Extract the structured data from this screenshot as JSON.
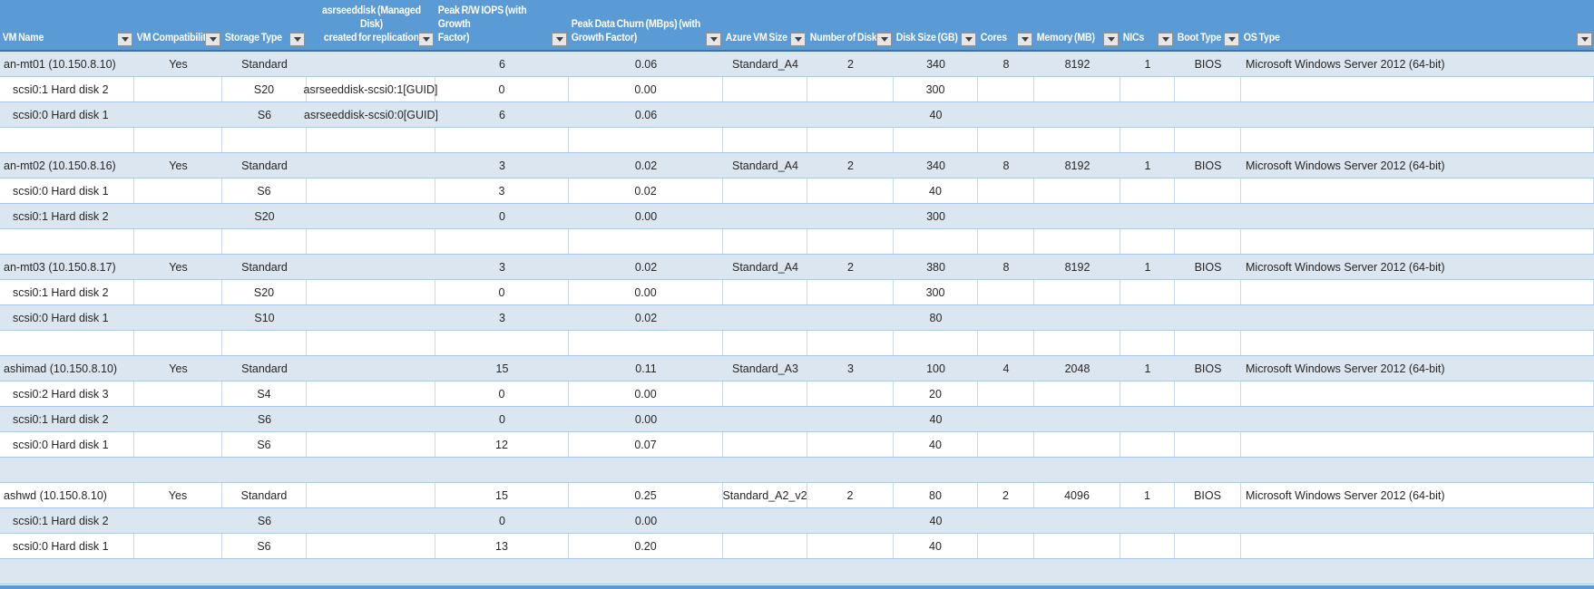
{
  "table": {
    "columns": [
      {
        "label": "VM Name",
        "filter": true
      },
      {
        "label": "VM Compatibility",
        "filter": true
      },
      {
        "label": "Storage Type",
        "filter": true
      },
      {
        "label": "asrseeddisk (Managed Disk)\ncreated for replication",
        "filter": true
      },
      {
        "label": "Peak R/W IOPS (with Growth\nFactor)",
        "filter": true
      },
      {
        "label": "Peak Data Churn (MBps) (with\nGrowth Factor)",
        "filter": true
      },
      {
        "label": "Azure VM Size",
        "filter": true
      },
      {
        "label": "Number of Disks",
        "filter": true
      },
      {
        "label": "Disk Size (GB)",
        "filter": true
      },
      {
        "label": "Cores",
        "filter": true
      },
      {
        "label": "Memory (MB)",
        "filter": true
      },
      {
        "label": "NICs",
        "filter": true
      },
      {
        "label": "Boot Type",
        "filter": true
      },
      {
        "label": "OS Type",
        "filter": true
      }
    ],
    "rows": [
      [
        "an-mt01 (10.150.8.10)",
        "Yes",
        "Standard",
        "",
        "6",
        "0.06",
        "Standard_A4",
        "2",
        "340",
        "8",
        "8192",
        "1",
        "BIOS",
        "Microsoft Windows Server 2012 (64-bit)"
      ],
      [
        "scsi0:1 Hard disk 2",
        "",
        "S20",
        "asrseeddisk-scsi0:1[GUID]",
        "0",
        "0.00",
        "",
        "",
        "300",
        "",
        "",
        "",
        "",
        ""
      ],
      [
        "scsi0:0 Hard disk 1",
        "",
        "S6",
        "asrseeddisk-scsi0:0[GUID]",
        "6",
        "0.06",
        "",
        "",
        "40",
        "",
        "",
        "",
        "",
        ""
      ],
      [],
      [
        "an-mt02 (10.150.8.16)",
        "Yes",
        "Standard",
        "",
        "3",
        "0.02",
        "Standard_A4",
        "2",
        "340",
        "8",
        "8192",
        "1",
        "BIOS",
        "Microsoft Windows Server 2012 (64-bit)"
      ],
      [
        "scsi0:0 Hard disk 1",
        "",
        "S6",
        "",
        "3",
        "0.02",
        "",
        "",
        "40",
        "",
        "",
        "",
        "",
        ""
      ],
      [
        "scsi0:1 Hard disk 2",
        "",
        "S20",
        "",
        "0",
        "0.00",
        "",
        "",
        "300",
        "",
        "",
        "",
        "",
        ""
      ],
      [],
      [
        "an-mt03 (10.150.8.17)",
        "Yes",
        "Standard",
        "",
        "3",
        "0.02",
        "Standard_A4",
        "2",
        "380",
        "8",
        "8192",
        "1",
        "BIOS",
        "Microsoft Windows Server 2012 (64-bit)"
      ],
      [
        "scsi0:1 Hard disk 2",
        "",
        "S20",
        "",
        "0",
        "0.00",
        "",
        "",
        "300",
        "",
        "",
        "",
        "",
        ""
      ],
      [
        "scsi0:0 Hard disk 1",
        "",
        "S10",
        "",
        "3",
        "0.02",
        "",
        "",
        "80",
        "",
        "",
        "",
        "",
        ""
      ],
      [],
      [
        "ashimad (10.150.8.10)",
        "Yes",
        "Standard",
        "",
        "15",
        "0.11",
        "Standard_A3",
        "3",
        "100",
        "4",
        "2048",
        "1",
        "BIOS",
        "Microsoft Windows Server 2012 (64-bit)"
      ],
      [
        "scsi0:2 Hard disk 3",
        "",
        "S4",
        "",
        "0",
        "0.00",
        "",
        "",
        "20",
        "",
        "",
        "",
        "",
        ""
      ],
      [
        "scsi0:1 Hard disk 2",
        "",
        "S6",
        "",
        "0",
        "0.00",
        "",
        "",
        "40",
        "",
        "",
        "",
        "",
        ""
      ],
      [
        "scsi0:0 Hard disk 1",
        "",
        "S6",
        "",
        "12",
        "0.07",
        "",
        "",
        "40",
        "",
        "",
        "",
        "",
        ""
      ],
      [],
      [
        "ashwd (10.150.8.10)",
        "Yes",
        "Standard",
        "",
        "15",
        "0.25",
        "Standard_A2_v2",
        "2",
        "80",
        "2",
        "4096",
        "1",
        "BIOS",
        "Microsoft Windows Server 2012 (64-bit)"
      ],
      [
        "scsi0:1 Hard disk 2",
        "",
        "S6",
        "",
        "0",
        "0.00",
        "",
        "",
        "40",
        "",
        "",
        "",
        "",
        ""
      ],
      [
        "scsi0:0 Hard disk 1",
        "",
        "S6",
        "",
        "13",
        "0.20",
        "",
        "",
        "40",
        "",
        "",
        "",
        "",
        ""
      ],
      []
    ]
  },
  "colors": {
    "header_bg": "#5b9bd5",
    "header_text": "#ffffff",
    "header_border": "#41719c",
    "banded_row": "#dce6f1",
    "row_grid_line": "#a9c7e7",
    "vertical_grid_line": "#ccd9ea",
    "cell_text": "#262626",
    "filter_button_bg": "#e6e6e6"
  }
}
